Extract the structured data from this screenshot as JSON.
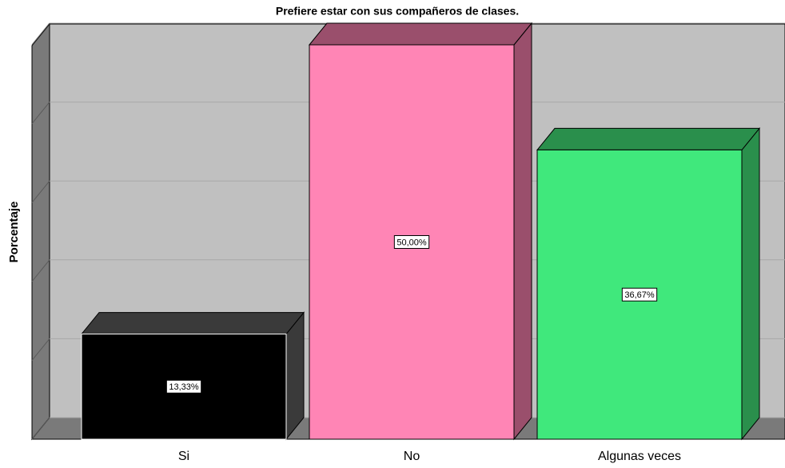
{
  "chart_data": {
    "type": "bar3d",
    "title": "Prefiere estar con sus compañeros de clases.",
    "y_label": "Porcentaje",
    "categories": [
      "Si",
      "No",
      "Algunas veces"
    ],
    "values": [
      13.33,
      50.0,
      36.67
    ],
    "value_labels": [
      "13,33%",
      "50,00%",
      "36,67%"
    ],
    "colors": [
      "#000000",
      "#ff85b5",
      "#40e87c"
    ],
    "side_colors": [
      "#3a3a3a",
      "#9a4f6c",
      "#2a8f4c"
    ],
    "ylim": [
      0,
      50
    ],
    "yticks": [
      0,
      10,
      20,
      30,
      40,
      50
    ],
    "grid": true
  }
}
